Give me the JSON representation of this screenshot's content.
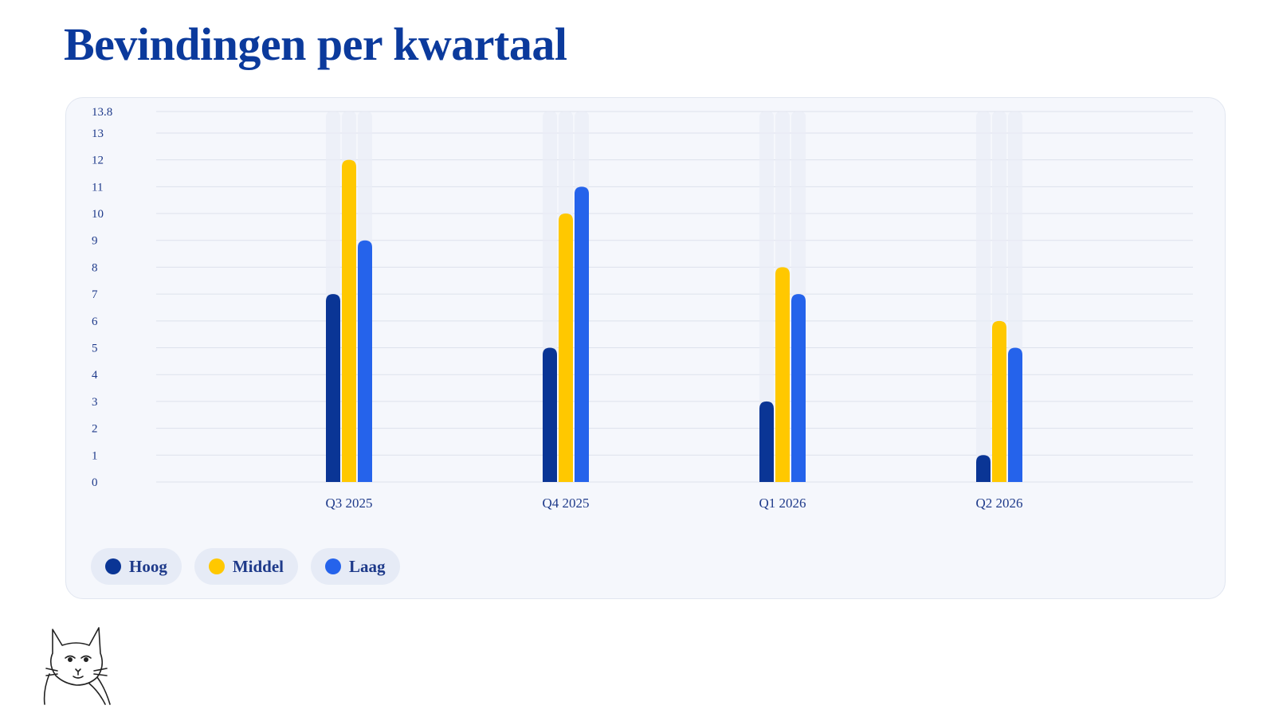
{
  "chart_data": {
    "type": "bar",
    "title": "Bevindingen per kwartaal",
    "categories": [
      "Q3 2025",
      "Q4 2025",
      "Q1 2026",
      "Q2 2026"
    ],
    "series": [
      {
        "name": "Hoog",
        "color": "#0a3595",
        "values": [
          7,
          5,
          3,
          1
        ]
      },
      {
        "name": "Middel",
        "color": "#ffc800",
        "values": [
          12,
          10,
          8,
          6
        ]
      },
      {
        "name": "Laag",
        "color": "#2563eb",
        "values": [
          9,
          11,
          7,
          5
        ]
      }
    ],
    "ylim": [
      0,
      13.8
    ],
    "yticks": [
      0,
      1,
      2,
      3,
      4,
      5,
      6,
      7,
      8,
      9,
      10,
      11,
      12,
      13,
      13.8
    ],
    "grid": true
  }
}
